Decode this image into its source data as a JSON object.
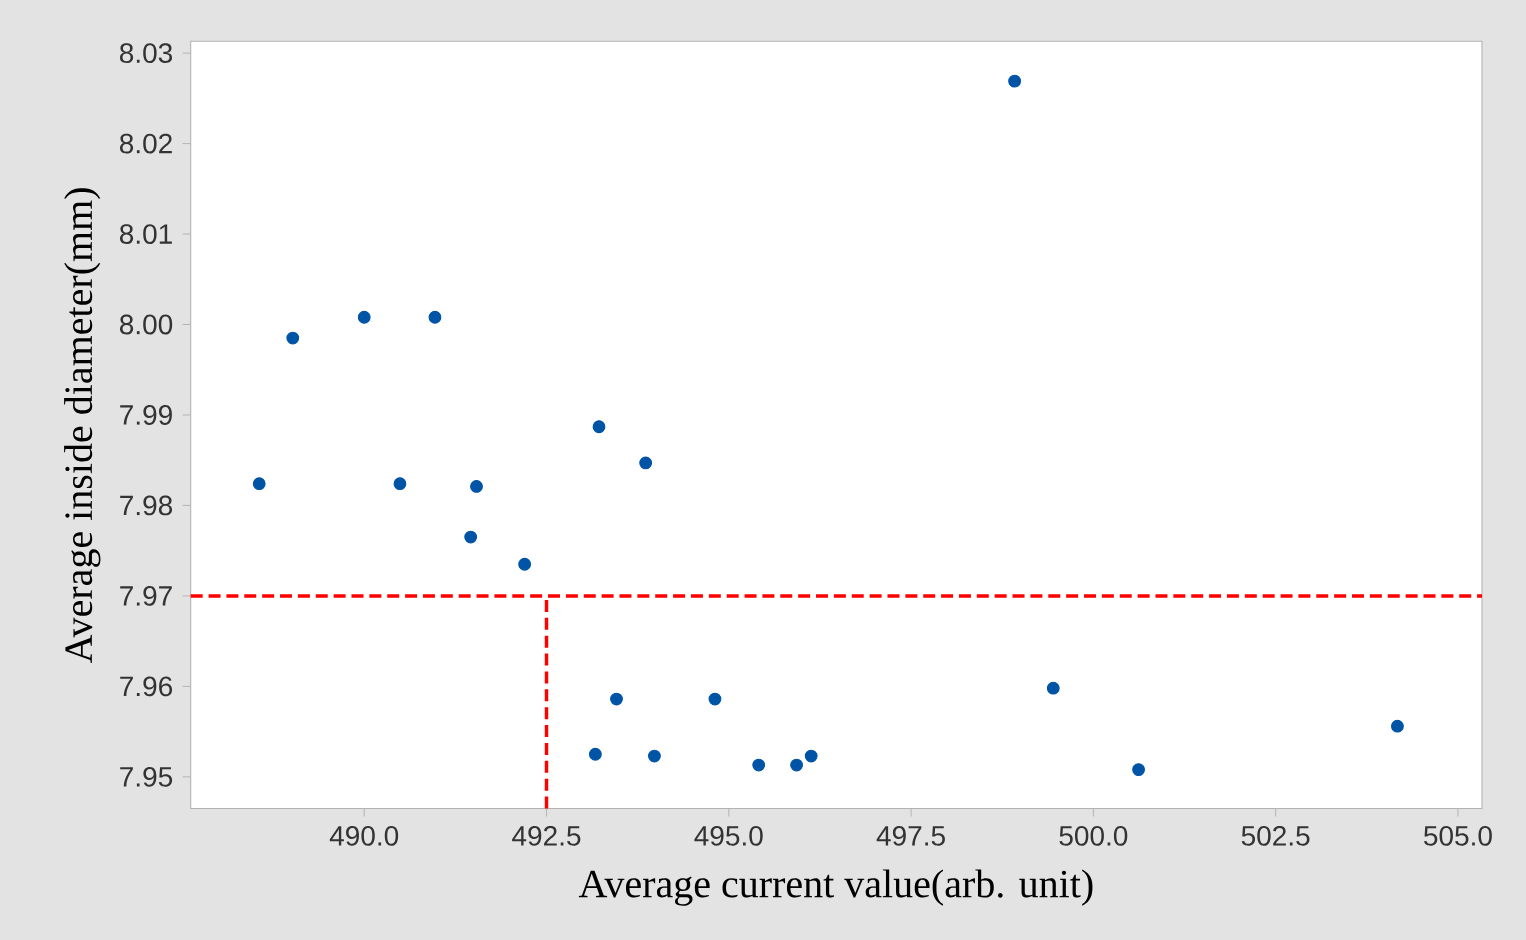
{
  "chart_data": {
    "type": "scatter",
    "xlabel": "Average current value(arb. unit)",
    "ylabel": "Average  inside diameter(mm)",
    "xlim": [
      487.62,
      505.33
    ],
    "ylim": [
      7.9465,
      8.0313
    ],
    "xticks": [
      {
        "value": 490.0,
        "label": "490.0"
      },
      492.5,
      {
        "value": 495.0,
        "label": "495.0"
      },
      497.5,
      {
        "value": 500.0,
        "label": "500.0"
      },
      502.5,
      {
        "value": 505.0,
        "label": "505.0"
      }
    ],
    "yticks": [
      7.95,
      7.96,
      7.97,
      7.98,
      7.99,
      {
        "value": 8.0,
        "label": "8.00"
      },
      8.01,
      8.02,
      8.03
    ],
    "marker": "circle",
    "series": [
      {
        "color": "#0054a6",
        "x": [
          488.56,
          489.02,
          490.0,
          490.97,
          490.49,
          491.54,
          491.46,
          492.2,
          493.22,
          493.86,
          493.17,
          493.46,
          493.98,
          494.81,
          495.41,
          495.93,
          496.13,
          498.92,
          499.45,
          500.62,
          504.17
        ],
        "values": [
          7.9824,
          7.9985,
          8.0008,
          8.0008,
          7.9824,
          7.9821,
          7.9765,
          7.9735,
          7.9887,
          7.9847,
          7.9525,
          7.9586,
          7.9523,
          7.9586,
          7.9513,
          7.9513,
          7.9523,
          8.0269,
          7.9598,
          7.9508,
          7.9556
        ]
      }
    ],
    "ref_lines": [
      {
        "axis": "y",
        "value": 7.97,
        "color": "#ff0000",
        "line_style": "dashed"
      },
      {
        "axis": "x",
        "value": 492.5,
        "color": "#ff0000",
        "line_style": "dashed"
      }
    ]
  }
}
